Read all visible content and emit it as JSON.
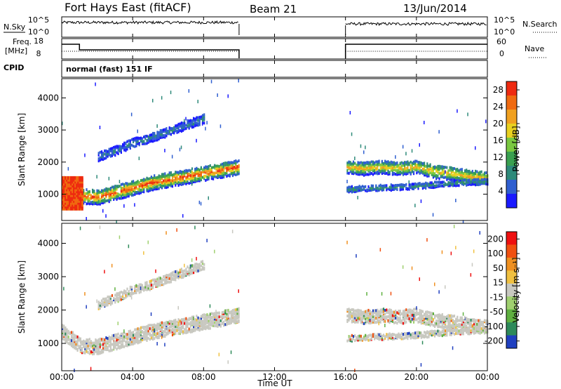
{
  "header": {
    "title": "Fort Hays East (fitACF)",
    "beam": "Beam 21",
    "date": "13/Jun/2014"
  },
  "params": {
    "nsky_label": "N.Sky",
    "nsky_ticks": [
      "10^5",
      "10^0"
    ],
    "nsearch_label": "N.Search",
    "nsearch_ticks": [
      "10^5",
      "10^0"
    ],
    "freq_label": "Freq.",
    "freq_unit": "[MHz]",
    "freq_ticks": [
      "18",
      "8"
    ],
    "nave_label": "Nave",
    "nave_ticks": [
      "60",
      "0"
    ],
    "cpid_label": "CPID",
    "cpid_text": "normal (fast) 151 IF"
  },
  "chart_data": [
    {
      "type": "heatmap",
      "panel": "power",
      "ylabel": "Slant Range [km]",
      "xlabel": "Time UT",
      "xticks": [
        "00:00",
        "04:00",
        "08:00",
        "12:00",
        "16:00",
        "20:00",
        "00:00"
      ],
      "xlim_hours": [
        0,
        24
      ],
      "ylim_km": [
        180,
        4600
      ],
      "yticks": [
        1000,
        2000,
        3000,
        4000
      ],
      "data_gap_hours": [
        10,
        16
      ],
      "colorbar": {
        "label": "Power [dB]",
        "ticks": [
          4,
          8,
          12,
          16,
          20,
          24,
          28
        ],
        "range": [
          0,
          30
        ],
        "colors": [
          "#1a1aff",
          "#2f5fd0",
          "#2e8a7a",
          "#3aa050",
          "#7ac840",
          "#e8d020",
          "#f0a020",
          "#f06a10",
          "#ee2a10"
        ]
      },
      "bands": [
        {
          "name": "strong echo band",
          "points": [
            [
              0,
              1400
            ],
            [
              1,
              1000
            ],
            [
              2,
              950
            ],
            [
              3,
              1100
            ],
            [
              4,
              1250
            ],
            [
              5,
              1400
            ],
            [
              6,
              1500
            ],
            [
              7,
              1600
            ],
            [
              8,
              1700
            ],
            [
              9,
              1800
            ],
            [
              10,
              1900
            ]
          ],
          "level": 26
        },
        {
          "name": "upper echo band",
          "points": [
            [
              2,
              2200
            ],
            [
              3,
              2400
            ],
            [
              4,
              2650
            ],
            [
              5,
              2800
            ],
            [
              6,
              3000
            ],
            [
              7,
              3200
            ],
            [
              8,
              3400
            ]
          ],
          "level": 6
        },
        {
          "name": "afternoon band",
          "points": [
            [
              16,
              1900
            ],
            [
              17,
              1850
            ],
            [
              18,
              1900
            ],
            [
              19,
              1850
            ],
            [
              20,
              1900
            ],
            [
              21,
              1750
            ],
            [
              22,
              1700
            ],
            [
              23,
              1600
            ],
            [
              24,
              1550
            ]
          ],
          "level": 20
        },
        {
          "name": "afternoon lower band",
          "points": [
            [
              16,
              1200
            ],
            [
              18,
              1250
            ],
            [
              20,
              1300
            ],
            [
              22,
              1400
            ],
            [
              24,
              1450
            ]
          ],
          "level": 8
        }
      ]
    },
    {
      "type": "heatmap",
      "panel": "velocity",
      "ylabel": "Slant Range [km]",
      "xlabel": "Time UT",
      "xticks": [
        "00:00",
        "04:00",
        "08:00",
        "12:00",
        "16:00",
        "20:00",
        "00:00"
      ],
      "xlim_hours": [
        0,
        24
      ],
      "ylim_km": [
        180,
        4600
      ],
      "yticks": [
        1000,
        2000,
        3000,
        4000
      ],
      "data_gap_hours": [
        10,
        16
      ],
      "colorbar": {
        "label": "Velocity [m s⁻¹]",
        "ticks": [
          200,
          100,
          50,
          15,
          -15,
          -50,
          -100,
          -200
        ],
        "colors": [
          "#2040c0",
          "#2e8a5a",
          "#5fb040",
          "#a0d070",
          "#c8c8c0",
          "#f0c040",
          "#f09020",
          "#f05010",
          "#ee1010"
        ]
      }
    }
  ],
  "footer": {
    "xlabel": "Time UT"
  }
}
